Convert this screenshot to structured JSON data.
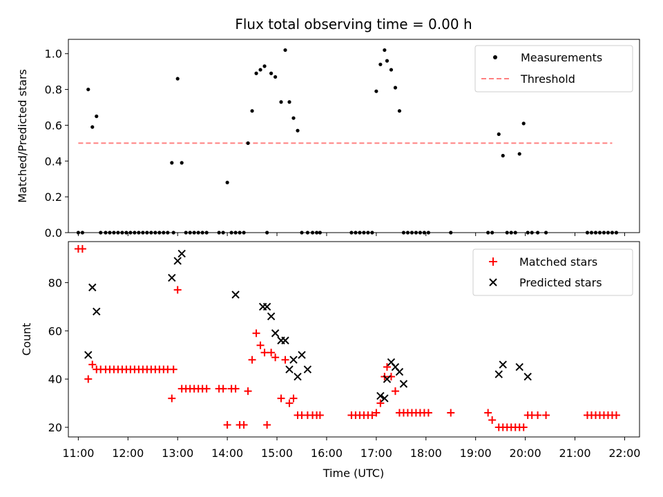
{
  "chart_data": [
    {
      "type": "scatter",
      "title": "Flux total observing time = 0.00 h",
      "ylabel": "Matched/Predicted stars",
      "xlabel": "",
      "xlim": [
        "10:48",
        "22:18"
      ],
      "ylim": [
        0,
        1.08
      ],
      "yticks": [
        0.0,
        0.2,
        0.4,
        0.6,
        0.8,
        1.0
      ],
      "ytick_labels": [
        "0.0",
        "0.2",
        "0.4",
        "0.6",
        "0.8",
        "1.0"
      ],
      "legend": {
        "placement": "top-right",
        "entries": [
          "Measurements",
          "Threshold"
        ]
      },
      "series": [
        {
          "name": "Measurements",
          "marker": "dot",
          "color": "#000000",
          "x": [
            "11:00",
            "11:05",
            "11:12",
            "11:17",
            "11:22",
            "11:27",
            "11:33",
            "11:38",
            "11:43",
            "11:48",
            "11:53",
            "11:58",
            "12:03",
            "12:08",
            "12:13",
            "12:18",
            "12:23",
            "12:28",
            "12:33",
            "12:38",
            "12:43",
            "12:48",
            "12:53",
            "12:55",
            "13:00",
            "13:05",
            "13:10",
            "13:15",
            "13:20",
            "13:25",
            "13:30",
            "13:35",
            "13:50",
            "13:55",
            "14:00",
            "14:05",
            "14:10",
            "14:15",
            "14:20",
            "14:25",
            "14:30",
            "14:35",
            "14:40",
            "14:45",
            "14:48",
            "14:53",
            "14:58",
            "15:05",
            "15:10",
            "15:15",
            "15:20",
            "15:25",
            "15:30",
            "15:37",
            "15:43",
            "15:48",
            "15:52",
            "16:30",
            "16:35",
            "16:40",
            "16:45",
            "16:50",
            "16:55",
            "17:00",
            "17:05",
            "17:10",
            "17:13",
            "17:18",
            "17:23",
            "17:28",
            "17:33",
            "17:38",
            "17:43",
            "17:48",
            "17:53",
            "17:58",
            "18:03",
            "18:30",
            "19:15",
            "19:20",
            "19:28",
            "19:33",
            "19:38",
            "19:43",
            "19:48",
            "19:53",
            "19:58",
            "20:03",
            "20:08",
            "20:15",
            "20:25",
            "21:15",
            "21:20",
            "21:25",
            "21:30",
            "21:35",
            "21:40",
            "21:45",
            "21:50"
          ],
          "y": [
            0,
            0,
            0.8,
            0.59,
            0.65,
            0,
            0,
            0,
            0,
            0,
            0,
            0,
            0,
            0,
            0,
            0,
            0,
            0,
            0,
            0,
            0,
            0,
            0.39,
            0,
            0.86,
            0.39,
            0,
            0,
            0,
            0,
            0,
            0,
            0,
            0,
            0.28,
            0,
            0,
            0,
            0,
            0.5,
            0.68,
            0.89,
            0.91,
            0.93,
            0,
            0.89,
            0.87,
            0.73,
            1.02,
            0.73,
            0.64,
            0.57,
            0,
            0,
            0,
            0,
            0,
            0,
            0,
            0,
            0,
            0,
            0,
            0.79,
            0.94,
            1.02,
            0.96,
            0.91,
            0.81,
            0.68,
            0,
            0,
            0,
            0,
            0,
            0,
            0,
            0,
            0,
            0,
            0.55,
            0.43,
            0,
            0,
            0,
            0.44,
            0.61,
            0,
            0,
            0,
            0,
            0,
            0,
            0,
            0,
            0,
            0,
            0,
            0
          ],
          "note_x_order": "unsorted"
        },
        {
          "name": "Threshold",
          "style": "dashed",
          "color": "#ff7f7f",
          "x": [
            "11:00",
            "21:45"
          ],
          "y": [
            0.5,
            0.5
          ]
        }
      ]
    },
    {
      "type": "scatter",
      "title": "",
      "ylabel": "Count",
      "xlabel": "Time (UTC)",
      "xlim": [
        "10:48",
        "22:18"
      ],
      "ylim": [
        16,
        97
      ],
      "yticks": [
        20,
        40,
        60,
        80
      ],
      "ytick_labels": [
        "20",
        "40",
        "60",
        "80"
      ],
      "xticks": [
        "11:00",
        "12:00",
        "13:00",
        "14:00",
        "15:00",
        "16:00",
        "17:00",
        "18:00",
        "19:00",
        "20:00",
        "21:00",
        "22:00"
      ],
      "legend": {
        "placement": "top-right",
        "entries": [
          "Matched stars",
          "Predicted stars"
        ]
      },
      "series": [
        {
          "name": "Matched stars",
          "marker": "plus",
          "color": "#ff0000",
          "x": [
            "11:00",
            "11:05",
            "11:12",
            "11:17",
            "11:22",
            "11:27",
            "11:33",
            "11:38",
            "11:43",
            "11:48",
            "11:53",
            "11:58",
            "12:03",
            "12:08",
            "12:13",
            "12:18",
            "12:23",
            "12:28",
            "12:33",
            "12:38",
            "12:43",
            "12:48",
            "12:53",
            "12:55",
            "13:00",
            "13:05",
            "13:10",
            "13:15",
            "13:20",
            "13:25",
            "13:30",
            "13:35",
            "13:50",
            "13:55",
            "14:00",
            "14:05",
            "14:10",
            "14:15",
            "14:20",
            "14:25",
            "14:30",
            "14:35",
            "14:40",
            "14:45",
            "14:48",
            "14:53",
            "14:58",
            "15:05",
            "15:10",
            "15:15",
            "15:20",
            "15:25",
            "15:30",
            "15:37",
            "15:43",
            "15:48",
            "15:52",
            "16:30",
            "16:35",
            "16:40",
            "16:45",
            "16:50",
            "16:55",
            "17:00",
            "17:05",
            "17:10",
            "17:13",
            "17:18",
            "17:23",
            "17:28",
            "17:33",
            "17:38",
            "17:43",
            "17:48",
            "17:53",
            "17:58",
            "18:03",
            "18:30",
            "19:15",
            "19:20",
            "19:28",
            "19:33",
            "19:38",
            "19:43",
            "19:48",
            "19:53",
            "19:58",
            "20:03",
            "20:08",
            "20:15",
            "20:25",
            "21:15",
            "21:20",
            "21:25",
            "21:30",
            "21:35",
            "21:40",
            "21:45",
            "21:50"
          ],
          "y": [
            94,
            94,
            40,
            46,
            44,
            44,
            44,
            44,
            44,
            44,
            44,
            44,
            44,
            44,
            44,
            44,
            44,
            44,
            44,
            44,
            44,
            44,
            32,
            44,
            77,
            36,
            36,
            36,
            36,
            36,
            36,
            36,
            36,
            36,
            21,
            36,
            36,
            21,
            21,
            35,
            48,
            59,
            54,
            51,
            21,
            51,
            49,
            32,
            48,
            30,
            32,
            25,
            25,
            25,
            25,
            25,
            25,
            25,
            25,
            25,
            25,
            25,
            25,
            26,
            30,
            41,
            45,
            41,
            35,
            26,
            26,
            26,
            26,
            26,
            26,
            26,
            26,
            26,
            26,
            23,
            20,
            20,
            20,
            20,
            20,
            20,
            20,
            25,
            25,
            25,
            25,
            25,
            25,
            25,
            25,
            25,
            25,
            25,
            25
          ],
          "note_x_order": "unsorted"
        },
        {
          "name": "Predicted stars",
          "marker": "x",
          "color": "#000000",
          "x": [
            "11:12",
            "11:17",
            "11:22",
            "12:53",
            "13:00",
            "13:05",
            "14:10",
            "14:43",
            "14:48",
            "14:53",
            "14:58",
            "15:05",
            "15:10",
            "15:15",
            "15:20",
            "15:25",
            "15:30",
            "15:37",
            "17:05",
            "17:10",
            "17:13",
            "17:18",
            "17:23",
            "17:28",
            "17:33",
            "19:28",
            "19:33",
            "19:53",
            "20:03"
          ],
          "y": [
            50,
            78,
            68,
            82,
            89,
            92,
            75,
            70,
            70,
            66,
            59,
            56,
            56,
            44,
            48,
            41,
            50,
            44,
            33,
            32,
            40,
            47,
            45,
            43,
            38,
            42,
            46,
            45,
            41
          ]
        }
      ]
    }
  ]
}
